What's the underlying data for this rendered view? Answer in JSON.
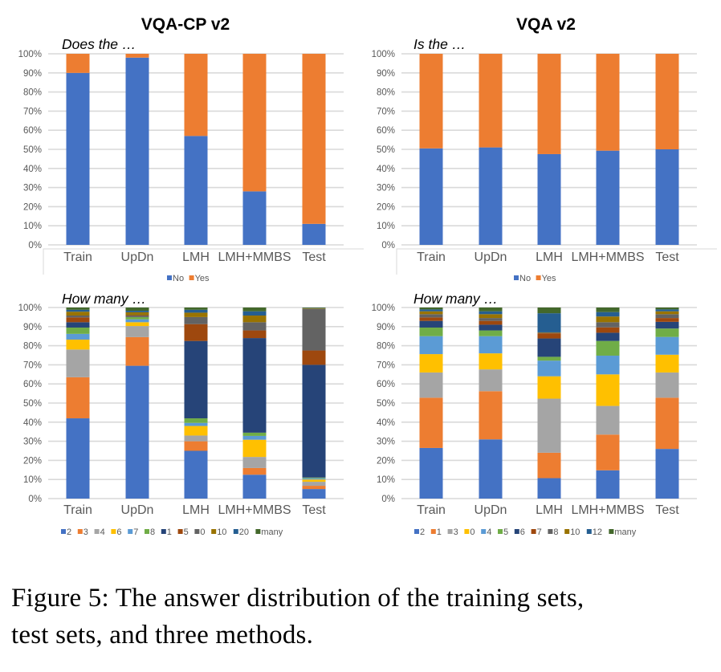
{
  "figure": {
    "column_titles": [
      "VQA-CP v2",
      "VQA v2"
    ],
    "caption_line1": "Figure 5:  The answer distribution of the training sets,",
    "caption_line2": "test sets, and three methods."
  },
  "chart_data": [
    {
      "type": "bar",
      "stacked": true,
      "column": "VQA-CP v2",
      "subtitle": "Does the …",
      "categories": [
        "Train",
        "UpDn",
        "LMH",
        "LMH+MMBS",
        "Test"
      ],
      "ylim": [
        0,
        100
      ],
      "yticks": [
        "0%",
        "10%",
        "20%",
        "30%",
        "40%",
        "50%",
        "60%",
        "70%",
        "80%",
        "90%",
        "100%"
      ],
      "grid": true,
      "legend": "bottom",
      "series": [
        {
          "name": "No",
          "color": "#4472C4",
          "values": [
            90,
            98,
            57,
            28,
            11
          ]
        },
        {
          "name": "Yes",
          "color": "#ED7D31",
          "values": [
            10,
            2,
            43,
            72,
            89
          ]
        }
      ]
    },
    {
      "type": "bar",
      "stacked": true,
      "column": "VQA v2",
      "subtitle": "Is the …",
      "categories": [
        "Train",
        "UpDn",
        "LMH",
        "LMH+MMBS",
        "Test"
      ],
      "ylim": [
        0,
        100
      ],
      "yticks": [
        "0%",
        "10%",
        "20%",
        "30%",
        "40%",
        "50%",
        "60%",
        "70%",
        "80%",
        "90%",
        "100%"
      ],
      "grid": true,
      "legend": "bottom",
      "series": [
        {
          "name": "No",
          "color": "#4472C4",
          "values": [
            50.5,
            51,
            47.5,
            49.3,
            50
          ]
        },
        {
          "name": "Yes",
          "color": "#ED7D31",
          "values": [
            49.5,
            49,
            52.5,
            50.7,
            50
          ]
        }
      ]
    },
    {
      "type": "bar",
      "stacked": true,
      "column": "VQA-CP v2",
      "subtitle": "How many …",
      "categories": [
        "Train",
        "UpDn",
        "LMH",
        "LMH+MMBS",
        "Test"
      ],
      "ylim": [
        0,
        100
      ],
      "yticks": [
        "0%",
        "10%",
        "20%",
        "30%",
        "40%",
        "50%",
        "60%",
        "70%",
        "80%",
        "90%",
        "100%"
      ],
      "grid": true,
      "legend": "bottom",
      "series": [
        {
          "name": "2",
          "color": "#4472C4",
          "values": [
            42,
            69.5,
            25,
            12.5,
            5
          ]
        },
        {
          "name": "3",
          "color": "#ED7D31",
          "values": [
            21.5,
            15,
            5,
            3.5,
            1.7
          ]
        },
        {
          "name": "4",
          "color": "#A5A5A5",
          "values": [
            14.5,
            5.8,
            3,
            5.8,
            2.1
          ]
        },
        {
          "name": "6",
          "color": "#FFC000",
          "values": [
            5.2,
            2,
            5,
            9,
            1.2
          ]
        },
        {
          "name": "7",
          "color": "#5B9BD5",
          "values": [
            3,
            1.5,
            1.6,
            2,
            0.6
          ]
        },
        {
          "name": "8",
          "color": "#70AD47",
          "values": [
            3.3,
            1.2,
            2.4,
            1.7,
            0.4
          ]
        },
        {
          "name": "1",
          "color": "#264478",
          "values": [
            2.8,
            0.3,
            40.5,
            49.5,
            59
          ]
        },
        {
          "name": "5",
          "color": "#9E480E",
          "values": [
            2.5,
            0.3,
            8.8,
            4,
            7.5
          ]
        },
        {
          "name": "0",
          "color": "#636363",
          "values": [
            1,
            0.4,
            3.7,
            4.3,
            21.7
          ]
        },
        {
          "name": "10",
          "color": "#997300",
          "values": [
            2,
            1.5,
            2.3,
            3.5,
            0.3
          ]
        },
        {
          "name": "20",
          "color": "#255E91",
          "values": [
            1,
            0.8,
            1.5,
            2.2,
            0.2
          ]
        },
        {
          "name": "many",
          "color": "#43682B",
          "values": [
            1.2,
            1.7,
            1.2,
            2,
            0.3
          ]
        }
      ]
    },
    {
      "type": "bar",
      "stacked": true,
      "column": "VQA v2",
      "subtitle": "How many …",
      "categories": [
        "Train",
        "UpDn",
        "LMH",
        "LMH+MMBS",
        "Test"
      ],
      "ylim": [
        0,
        100
      ],
      "yticks": [
        "0%",
        "10%",
        "20%",
        "30%",
        "40%",
        "50%",
        "60%",
        "70%",
        "80%",
        "90%",
        "100%"
      ],
      "grid": true,
      "legend": "bottom",
      "series": [
        {
          "name": "2",
          "color": "#4472C4",
          "values": [
            26.5,
            31,
            10.7,
            14.8,
            26
          ]
        },
        {
          "name": "1",
          "color": "#ED7D31",
          "values": [
            26.3,
            25.2,
            13.3,
            18.7,
            26.8
          ]
        },
        {
          "name": "3",
          "color": "#A5A5A5",
          "values": [
            13.2,
            11.4,
            28.3,
            15,
            13.2
          ]
        },
        {
          "name": "0",
          "color": "#FFC000",
          "values": [
            9.6,
            8.4,
            11.7,
            16.5,
            9.3
          ]
        },
        {
          "name": "4",
          "color": "#5B9BD5",
          "values": [
            9.4,
            9,
            8.2,
            9.8,
            9.3
          ]
        },
        {
          "name": "5",
          "color": "#70AD47",
          "values": [
            4.5,
            3,
            2,
            7.7,
            4.4
          ]
        },
        {
          "name": "6",
          "color": "#264478",
          "values": [
            3.5,
            3,
            9.6,
            4.3,
            3.5
          ]
        },
        {
          "name": "7",
          "color": "#9E480E",
          "values": [
            1.8,
            2,
            2.7,
            2.8,
            2
          ]
        },
        {
          "name": "8",
          "color": "#636363",
          "values": [
            1.7,
            1.5,
            0.3,
            2.7,
            2
          ]
        },
        {
          "name": "10",
          "color": "#997300",
          "values": [
            1.5,
            2,
            0.2,
            3,
            1.5
          ]
        },
        {
          "name": "12",
          "color": "#255E91",
          "values": [
            1,
            1.5,
            10,
            2.3,
            1
          ]
        },
        {
          "name": "many",
          "color": "#43682B",
          "values": [
            1,
            2,
            3,
            2.4,
            1
          ]
        }
      ]
    }
  ]
}
